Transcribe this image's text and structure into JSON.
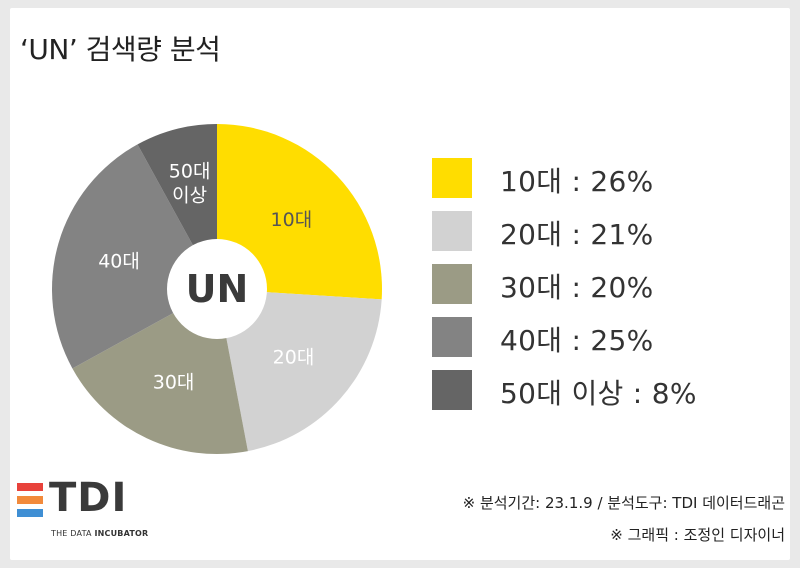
{
  "title": "‘UN’ 검색량 분석",
  "chart_data": {
    "type": "pie",
    "style": "donut",
    "center_label": "UN",
    "categories": [
      "10대",
      "20대",
      "30대",
      "40대",
      "50대 이상"
    ],
    "slice_labels": [
      "10대",
      "20대",
      "30대",
      "40대",
      "50대\n이상"
    ],
    "values": [
      26,
      21,
      20,
      25,
      8
    ],
    "unit": "%",
    "colors": [
      "#ffdd00",
      "#d2d2d2",
      "#9b9b85",
      "#838383",
      "#656565"
    ],
    "label_colors": [
      "#555555",
      "#ffffff",
      "#ffffff",
      "#ffffff",
      "#ffffff"
    ],
    "legend": {
      "position": "right",
      "entries": [
        "10대 : 26%",
        "20대 : 21%",
        "30대 : 20%",
        "40대 : 25%",
        "50대 이상 : 8%"
      ]
    }
  },
  "footer": {
    "logo": {
      "word": "TDI",
      "tagline_regular": "THE DATA ",
      "tagline_bold": "INCUBATOR",
      "bar_colors": [
        "#e8423b",
        "#f28a3b",
        "#3f8fd4"
      ]
    },
    "notes": [
      "※ 분석기간: 23.1.9 / 분석도구: TDI 데이터드래곤",
      "※ 그래픽 : 조정인 디자이너"
    ]
  }
}
